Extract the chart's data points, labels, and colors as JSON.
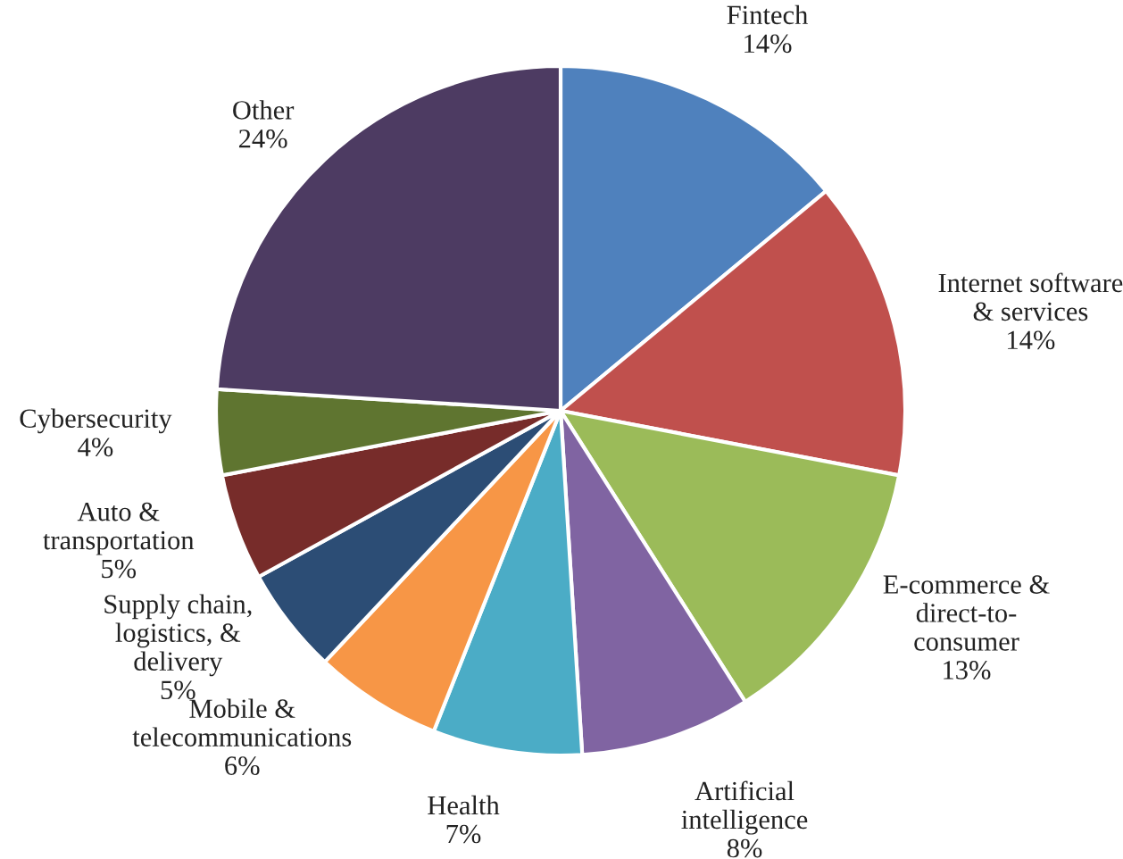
{
  "chart_data": {
    "type": "pie",
    "categories": [
      "Fintech",
      "Internet software\n& services",
      "E-commerce &\ndirect-to-\nconsumer",
      "Artificial\nintelligence",
      "Health",
      "Mobile &\ntelecommunications",
      "Supply chain,\nlogistics, &\ndelivery",
      "Auto &\ntransportation",
      "Cybersecurity",
      "Other"
    ],
    "values": [
      14,
      14,
      13,
      8,
      7,
      6,
      5,
      5,
      4,
      24
    ],
    "value_labels": [
      "14%",
      "14%",
      "13%",
      "8%",
      "7%",
      "6%",
      "5%",
      "5%",
      "4%",
      "24%"
    ],
    "colors": [
      "#4f81bd",
      "#c0504d",
      "#9bbb59",
      "#8064a2",
      "#4bacc6",
      "#f79646",
      "#2c4d75",
      "#772c2a",
      "#5f7530",
      "#4d3b62"
    ]
  }
}
